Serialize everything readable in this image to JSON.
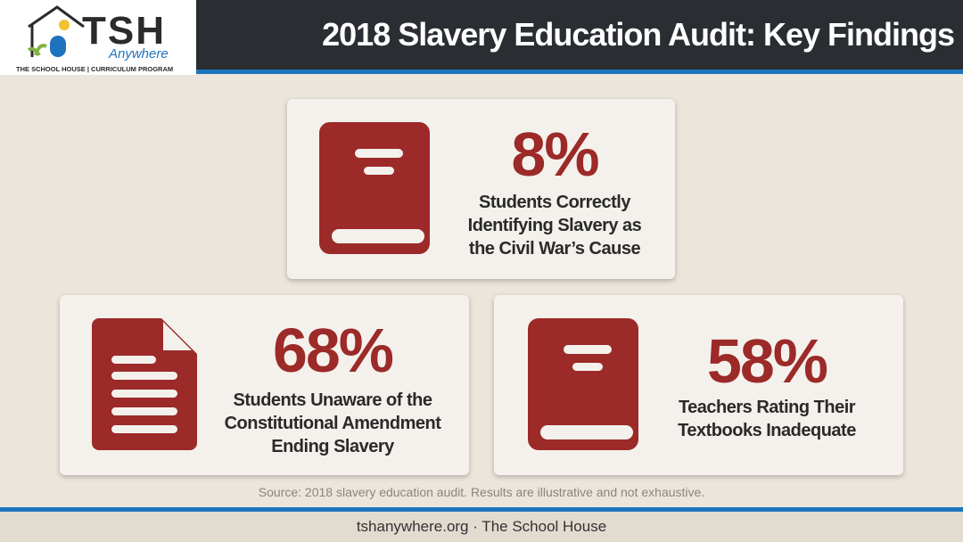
{
  "header": {
    "logo": {
      "mark": "TSH",
      "script": "Anywhere",
      "tagline": "THE SCHOOL HOUSE | CURRICULUM PROGRAM"
    },
    "title": "2018 Slavery Education Audit: Key Findings"
  },
  "findings": [
    {
      "stat": "8%",
      "label": "Students Correctly Identifying Slavery as the Civil War’s Cause"
    },
    {
      "stat": "68%",
      "label": "Students Unaware of the Constitutional Amendment Ending Slavery"
    },
    {
      "stat": "58%",
      "label": "Teachers Rating Their Textbooks Inadequate"
    }
  ],
  "source": "Source: 2018 slavery education audit. Results are illustrative and not exhaustive.",
  "footer": "tshanywhere.org · The School House"
}
